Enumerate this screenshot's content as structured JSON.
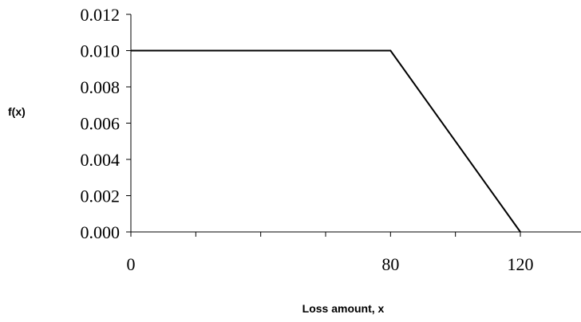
{
  "chart_data": {
    "type": "line",
    "title": "",
    "xlabel": "Loss amount, x",
    "ylabel": "f(x)",
    "xlim": [
      0,
      120
    ],
    "ylim": [
      0,
      0.012
    ],
    "x_ticks": [
      0,
      20,
      40,
      60,
      80,
      100,
      120
    ],
    "x_tick_labels": [
      {
        "value": 0,
        "label": "0"
      },
      {
        "value": 80,
        "label": "80"
      },
      {
        "value": 120,
        "label": "120"
      }
    ],
    "y_ticks": [
      0,
      0.002,
      0.004,
      0.006,
      0.008,
      0.01,
      0.012
    ],
    "y_tick_labels": [
      "0.000",
      "0.002",
      "0.004",
      "0.006",
      "0.008",
      "0.010",
      "0.012"
    ],
    "grid": false,
    "legend": "none",
    "series": [
      {
        "x": [
          0,
          80,
          120
        ],
        "y": [
          0.01,
          0.01,
          0.0
        ]
      }
    ]
  }
}
